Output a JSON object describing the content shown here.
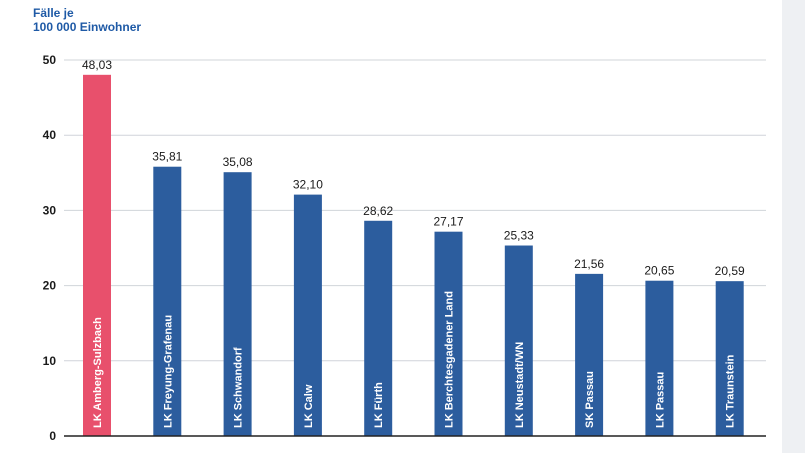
{
  "chart_data": {
    "type": "bar",
    "ylabel_lines": [
      "Fälle je",
      "100 000 Einwohner"
    ],
    "categories": [
      "LK Amberg-Sulzbach",
      "LK Freyung-Grafenau",
      "LK Schwandorf",
      "LK Calw",
      "LK Fürth",
      "LK Berchtesgadener Land",
      "LK Neustadt/WN",
      "SK Passau",
      "LK Passau",
      "LK Traunstein"
    ],
    "values": [
      48.03,
      35.81,
      35.08,
      32.1,
      28.62,
      27.17,
      25.33,
      21.56,
      20.65,
      20.59
    ],
    "value_labels": [
      "48,03",
      "35,81",
      "35,08",
      "32,10",
      "28,62",
      "27,17",
      "25,33",
      "21,56",
      "20,65",
      "20,59"
    ],
    "ylim": [
      0,
      50
    ],
    "yticks": [
      0,
      10,
      20,
      30,
      40,
      50
    ],
    "grid": true,
    "colors": {
      "highlight": "#e8506c",
      "bar": "#2c5d9e",
      "grid": "#d0d4da",
      "axis": "#222222",
      "unit_label": "#1f5aa6"
    }
  }
}
